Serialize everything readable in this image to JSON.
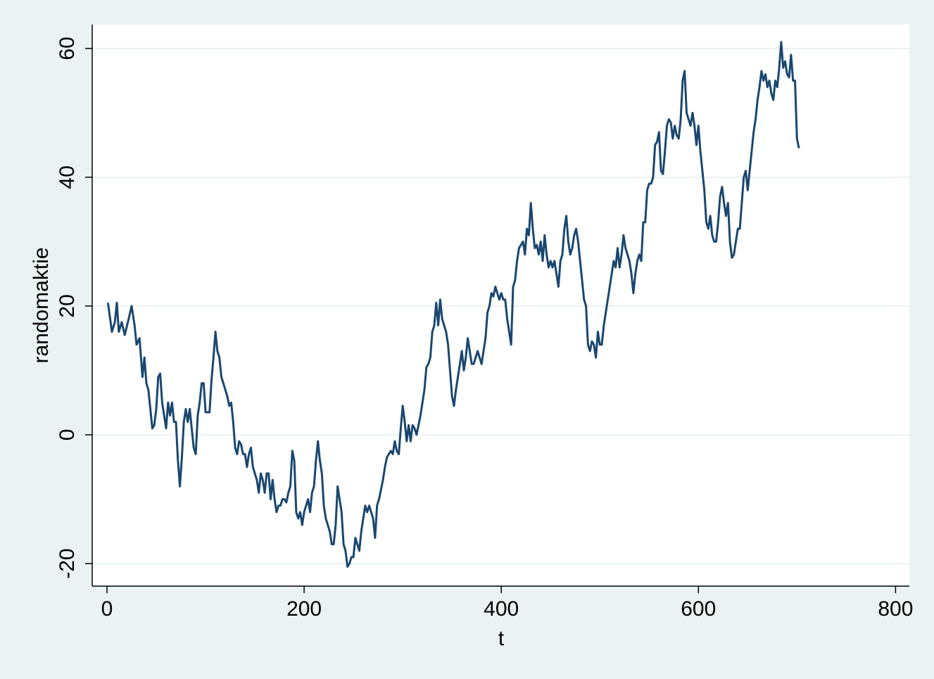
{
  "chart_data": {
    "type": "line",
    "xlabel": "t",
    "ylabel": "randomaktie",
    "color": "#1a476f",
    "grid": true,
    "xlim": [
      -15,
      814
    ],
    "ylim": [
      -23.5,
      63.7
    ],
    "xticks": [
      0,
      200,
      400,
      600,
      800
    ],
    "yticks": [
      -20,
      0,
      20,
      40,
      60
    ],
    "x": [
      1,
      5,
      8,
      10,
      12,
      15,
      18,
      22,
      25,
      28,
      30,
      33,
      36,
      38,
      40,
      42,
      44,
      46,
      48,
      50,
      52,
      54,
      56,
      58,
      60,
      62,
      64,
      66,
      68,
      70,
      72,
      74,
      76,
      78,
      80,
      82,
      84,
      86,
      88,
      90,
      92,
      94,
      96,
      98,
      100,
      104,
      106,
      108,
      110,
      112,
      114,
      116,
      118,
      120,
      122,
      124,
      126,
      128,
      130,
      132,
      134,
      136,
      138,
      140,
      142,
      144,
      146,
      148,
      150,
      152,
      154,
      156,
      158,
      160,
      162,
      164,
      166,
      168,
      170,
      172,
      174,
      176,
      178,
      180,
      182,
      184,
      186,
      188,
      190,
      192,
      194,
      196,
      198,
      200,
      202,
      204,
      206,
      208,
      210,
      212,
      214,
      216,
      218,
      220,
      222,
      224,
      226,
      228,
      230,
      232,
      234,
      236,
      238,
      240,
      242,
      244,
      246,
      248,
      250,
      252,
      254,
      256,
      258,
      260,
      262,
      264,
      266,
      268,
      270,
      272,
      274,
      276,
      278,
      280,
      282,
      284,
      286,
      288,
      290,
      292,
      294,
      296,
      298,
      300,
      302,
      304,
      306,
      308,
      310,
      312,
      314,
      316,
      318,
      320,
      322,
      324,
      326,
      328,
      330,
      332,
      334,
      336,
      338,
      340,
      342,
      344,
      346,
      348,
      350,
      352,
      354,
      356,
      358,
      360,
      362,
      364,
      366,
      368,
      370,
      372,
      374,
      376,
      378,
      380,
      382,
      384,
      386,
      388,
      390,
      392,
      394,
      396,
      398,
      400,
      402,
      404,
      406,
      408,
      410,
      412,
      414,
      416,
      418,
      420,
      422,
      424,
      426,
      428,
      430,
      432,
      434,
      436,
      438,
      440,
      442,
      444,
      446,
      448,
      450,
      452,
      454,
      456,
      458,
      460,
      462,
      464,
      466,
      468,
      470,
      472,
      474,
      476,
      478,
      480,
      482,
      484,
      486,
      488,
      490,
      492,
      494,
      496,
      498,
      500,
      502,
      504,
      506,
      508,
      510,
      512,
      514,
      516,
      518,
      520,
      522,
      524,
      526,
      528,
      530,
      532,
      534,
      536,
      538,
      540,
      542,
      544,
      546,
      548,
      550,
      552,
      554,
      556,
      558,
      560,
      562,
      564,
      566,
      568,
      570,
      572,
      574,
      576,
      578,
      580,
      582,
      584,
      586,
      588,
      590,
      592,
      594,
      596,
      598,
      600,
      602,
      604,
      606,
      608,
      610,
      612,
      614,
      616,
      618,
      620,
      622,
      624,
      626,
      628,
      630,
      632,
      634,
      636,
      638,
      640,
      642,
      644,
      646,
      648,
      650,
      652,
      654,
      656,
      658,
      660,
      662,
      664,
      666,
      668,
      670,
      672,
      674,
      676,
      678,
      680,
      682,
      684,
      686,
      688,
      690,
      692,
      694,
      696,
      698,
      700,
      702
    ],
    "values": [
      20.5,
      16,
      17.5,
      20.5,
      16,
      17.5,
      15.5,
      18,
      20,
      17,
      14,
      15,
      9,
      12,
      8,
      7,
      4,
      1,
      1.5,
      4,
      9,
      9.5,
      5,
      3,
      1,
      5,
      3,
      5,
      2,
      2,
      -4,
      -8,
      -3.5,
      2,
      4,
      2,
      4,
      1,
      -2,
      -3,
      3,
      5,
      8,
      8,
      3.5,
      3.5,
      8.5,
      12,
      16,
      13,
      12,
      9,
      8,
      7,
      6,
      4.5,
      5,
      2,
      -2,
      -3,
      -1,
      -1.5,
      -3,
      -3,
      -5,
      -3,
      -2,
      -5,
      -6,
      -7,
      -9,
      -6,
      -7,
      -9,
      -6,
      -6,
      -10,
      -7,
      -10,
      -12,
      -11,
      -11,
      -10,
      -10,
      -10.5,
      -9,
      -8,
      -2.5,
      -4,
      -12,
      -13,
      -12,
      -14,
      -12,
      -11,
      -10,
      -12,
      -9,
      -8,
      -4,
      -1,
      -4,
      -6,
      -11,
      -13,
      -14,
      -15,
      -17,
      -17,
      -14,
      -8,
      -10,
      -12,
      -17,
      -18,
      -20.5,
      -20,
      -19,
      -19,
      -16,
      -17,
      -18,
      -15,
      -13,
      -11,
      -12,
      -11,
      -12,
      -13,
      -16,
      -11,
      -10,
      -8.5,
      -7,
      -5,
      -3.5,
      -3,
      -2.5,
      -3,
      -1,
      -2.5,
      -3,
      1,
      4.5,
      2,
      -1,
      1.5,
      -1,
      1.5,
      1,
      0,
      1.5,
      3,
      5,
      7,
      10.5,
      11,
      12,
      16,
      17,
      20.5,
      17,
      21,
      18,
      17,
      16,
      14,
      10,
      6,
      4.5,
      7,
      9,
      11,
      13,
      10,
      12,
      15,
      13,
      11,
      11,
      12,
      13,
      12,
      11,
      13,
      15,
      19,
      20,
      22,
      21.5,
      23,
      22,
      21,
      22,
      21,
      21,
      18,
      16,
      14,
      23,
      24,
      27,
      29,
      29.5,
      30,
      28,
      32,
      31,
      36,
      32,
      29,
      29.5,
      28,
      30,
      27,
      31,
      28,
      26,
      27,
      26,
      27,
      25,
      23,
      27,
      28,
      32,
      34,
      30,
      28,
      29,
      31,
      32,
      30,
      27,
      24,
      21,
      20,
      14,
      13,
      14.5,
      14,
      12,
      16,
      14,
      14,
      17,
      19,
      21,
      23,
      25,
      27,
      26,
      29,
      26,
      28,
      31,
      29,
      28,
      27,
      25,
      22,
      25,
      27,
      28,
      27,
      33,
      33,
      38,
      39,
      39,
      40,
      45,
      45.5,
      47,
      41,
      40.5,
      44,
      48,
      49,
      48.5,
      46,
      48,
      46.5,
      46,
      49,
      55,
      56.5,
      50,
      49,
      48,
      50,
      48,
      45,
      48,
      44,
      41,
      38,
      33,
      32,
      34,
      31,
      30,
      30,
      33,
      37,
      38.5,
      36,
      34,
      36,
      30,
      27.5,
      28,
      30,
      32,
      32,
      36,
      40,
      41,
      38,
      41,
      44,
      47,
      49,
      52,
      54,
      56.5,
      55,
      56,
      54,
      55,
      53,
      52,
      55,
      54,
      57,
      61,
      57,
      58,
      56,
      55.5,
      59,
      55,
      55,
      46,
      44.5
    ]
  }
}
